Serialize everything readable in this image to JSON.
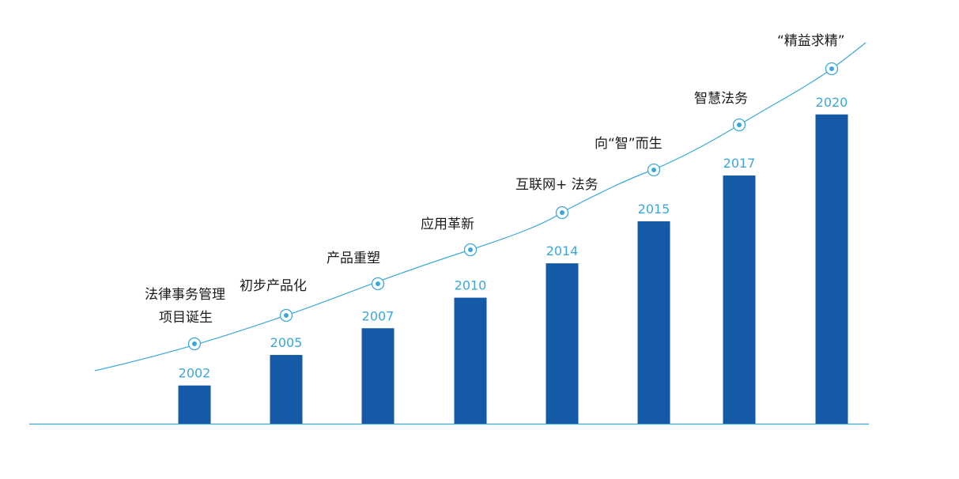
{
  "chart_data": {
    "type": "bar",
    "categories": [
      "2002",
      "2005",
      "2007",
      "2010",
      "2014",
      "2015",
      "2017",
      "2020"
    ],
    "values": [
      1,
      1.8,
      2.5,
      3.3,
      4.2,
      5.3,
      6.5,
      8.1
    ],
    "milestones": [
      [
        "法律事务管理",
        "项目诞生"
      ],
      [
        "初步产品化"
      ],
      [
        "产品重塑"
      ],
      [
        "应用革新"
      ],
      [
        "互联网+ 法务"
      ],
      [
        "向“智”而生"
      ],
      [
        "智慧法务"
      ],
      [
        "“精益求精”"
      ]
    ],
    "colors": {
      "bar": "#155aa6",
      "accent": "#3ba7d9"
    },
    "grid": false
  }
}
